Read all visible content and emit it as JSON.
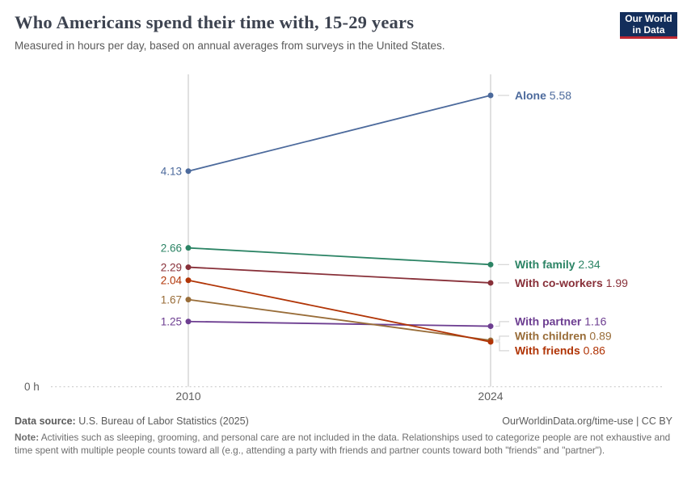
{
  "header": {
    "title": "Who Americans spend their time with, 15-29 years",
    "subtitle": "Measured in hours per day, based on annual averages from surveys in the United States.",
    "logo": {
      "line1": "Our World",
      "line2": "in Data"
    }
  },
  "brand": {
    "navy": "#132e5b",
    "red": "#be2832"
  },
  "chart_data": {
    "type": "line",
    "variant": "slope-chart",
    "x": [
      2010,
      2024
    ],
    "series": [
      {
        "name": "Alone",
        "color": "#4C6A9C",
        "values": [
          4.13,
          5.58
        ]
      },
      {
        "name": "With family",
        "color": "#2C8465",
        "values": [
          2.66,
          2.34
        ]
      },
      {
        "name": "With co-workers",
        "color": "#883039",
        "values": [
          2.29,
          1.99
        ]
      },
      {
        "name": "With partner",
        "color": "#6D3E91",
        "values": [
          1.25,
          1.16
        ]
      },
      {
        "name": "With children",
        "color": "#996D39",
        "values": [
          1.67,
          0.89
        ]
      },
      {
        "name": "With friends",
        "color": "#B13507",
        "values": [
          2.04,
          0.86
        ]
      }
    ],
    "ylim": [
      0,
      6
    ],
    "zero_label": "0 h",
    "grid": "zero-line-only",
    "legend_position": "right-inline-labels"
  },
  "footer": {
    "source_label": "Data source:",
    "source_text": " U.S. Bureau of Labor Statistics (2025)",
    "attribution": "OurWorldinData.org/time-use | CC BY",
    "note_label": "Note:",
    "note_text": " Activities such as sleeping, grooming, and personal care are not included in the data. Relationships used to categorize people are not exhaustive and time spent with multiple people counts toward all (e.g., attending a party with friends and partner counts toward both \"friends\" and \"partner\")."
  }
}
